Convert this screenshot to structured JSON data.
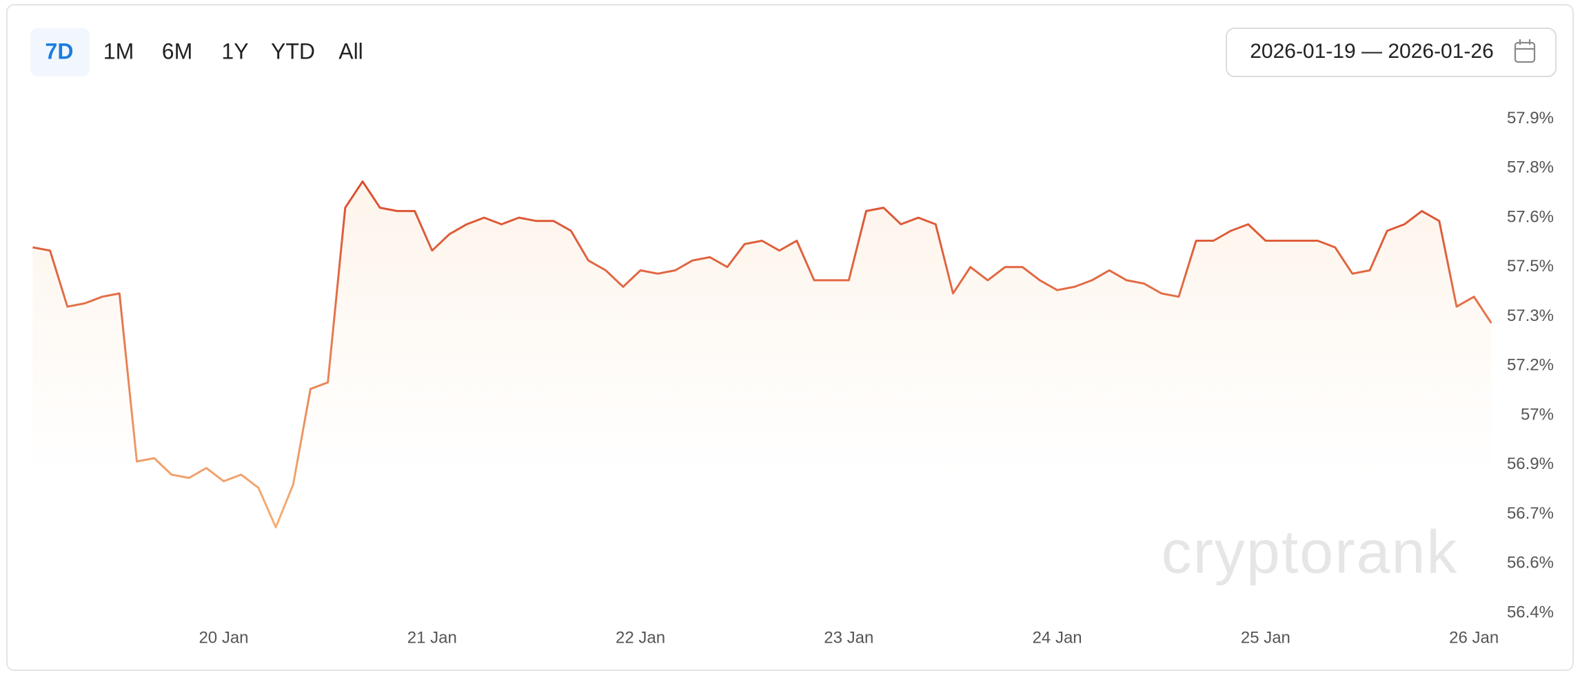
{
  "ranges": [
    "7D",
    "1M",
    "6M",
    "1Y",
    "YTD",
    "All"
  ],
  "active_range": 0,
  "date_range": "2026-01-19 — 2026-01-26",
  "watermark": "cryptorank",
  "chart_data": {
    "type": "line",
    "categories": [
      null,
      null,
      null,
      null,
      null,
      null,
      null,
      null,
      null,
      null,
      null,
      "20 Jan",
      null,
      null,
      null,
      null,
      null,
      null,
      null,
      null,
      null,
      null,
      null,
      "21 Jan",
      null,
      null,
      null,
      null,
      null,
      null,
      null,
      null,
      null,
      null,
      null,
      "22 Jan",
      null,
      null,
      null,
      null,
      null,
      null,
      null,
      null,
      null,
      null,
      null,
      "23 Jan",
      null,
      null,
      null,
      null,
      null,
      null,
      null,
      null,
      null,
      null,
      null,
      "24 Jan",
      null,
      null,
      null,
      null,
      null,
      null,
      null,
      null,
      null,
      null,
      null,
      "25 Jan",
      null,
      null,
      null,
      null,
      null,
      null,
      null,
      null,
      null,
      null,
      null,
      "26 Jan",
      null
    ],
    "series": [
      {
        "color": "#d9482b",
        "color_low": "#f7bb7f",
        "values": [
          57.51,
          57.5,
          57.33,
          57.34,
          57.36,
          57.37,
          56.86,
          56.87,
          56.82,
          56.81,
          56.84,
          56.8,
          56.82,
          56.78,
          56.66,
          56.79,
          57.08,
          57.1,
          57.63,
          57.71,
          57.63,
          57.62,
          57.62,
          57.5,
          57.55,
          57.58,
          57.6,
          57.58,
          57.6,
          57.59,
          57.59,
          57.56,
          57.47,
          57.44,
          57.39,
          57.44,
          57.43,
          57.44,
          57.47,
          57.48,
          57.45,
          57.52,
          57.53,
          57.5,
          57.53,
          57.41,
          57.41,
          57.41,
          57.62,
          57.63,
          57.58,
          57.6,
          57.58,
          57.37,
          57.45,
          57.41,
          57.45,
          57.45,
          57.41,
          57.38,
          57.39,
          57.41,
          57.44,
          57.41,
          57.4,
          57.37,
          57.36,
          57.53,
          57.53,
          57.56,
          57.58,
          57.53,
          57.53,
          57.53,
          57.53,
          57.51,
          57.43,
          57.44,
          57.56,
          57.58,
          57.62,
          57.59,
          57.33,
          57.36,
          57.28
        ]
      }
    ],
    "ylim": [
      56.4,
      57.9
    ],
    "yticks": [
      {
        "value": 56.4,
        "label": "56.4%"
      },
      {
        "value": 56.55,
        "label": "56.6%"
      },
      {
        "value": 56.7,
        "label": "56.7%"
      },
      {
        "value": 56.85,
        "label": "56.9%"
      },
      {
        "value": 57.0,
        "label": "57%"
      },
      {
        "value": 57.15,
        "label": "57.2%"
      },
      {
        "value": 57.3,
        "label": "57.3%"
      },
      {
        "value": 57.45,
        "label": "57.5%"
      },
      {
        "value": 57.6,
        "label": "57.6%"
      },
      {
        "value": 57.75,
        "label": "57.8%"
      },
      {
        "value": 57.9,
        "label": "57.9%"
      }
    ],
    "grid": false
  }
}
